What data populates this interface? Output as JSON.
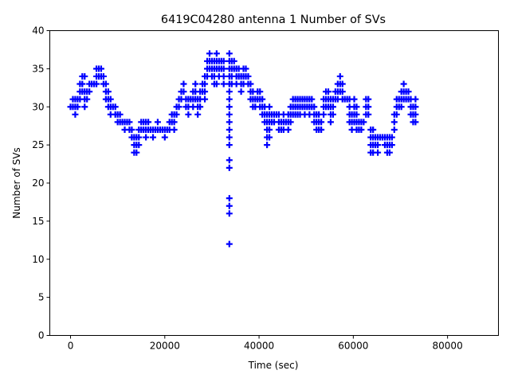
{
  "chart_data": {
    "type": "scatter",
    "title": "6419C04280 antenna 1 Number of SVs",
    "xlabel": "Time (sec)",
    "ylabel": "Number of SVs",
    "xlim": [
      -4400,
      90800
    ],
    "ylim": [
      0,
      40
    ],
    "xticks": [
      0,
      20000,
      40000,
      60000,
      80000
    ],
    "yticks": [
      0,
      5,
      10,
      15,
      20,
      25,
      30,
      35,
      40
    ],
    "marker": "+",
    "color": "#0000ff",
    "grid": false,
    "points_by_time": [
      {
        "t": 0,
        "v": [
          30
        ]
      },
      {
        "t": 500,
        "v": [
          30,
          31
        ]
      },
      {
        "t": 1000,
        "v": [
          29,
          30,
          31
        ]
      },
      {
        "t": 1500,
        "v": [
          30,
          31
        ]
      },
      {
        "t": 2000,
        "v": [
          31,
          32,
          33
        ]
      },
      {
        "t": 2500,
        "v": [
          32,
          33,
          34
        ]
      },
      {
        "t": 3000,
        "v": [
          30,
          31,
          32,
          34
        ]
      },
      {
        "t": 3500,
        "v": [
          31,
          32
        ]
      },
      {
        "t": 4000,
        "v": [
          32,
          33
        ]
      },
      {
        "t": 4500,
        "v": [
          33
        ]
      },
      {
        "t": 5000,
        "v": [
          33
        ]
      },
      {
        "t": 5500,
        "v": [
          33,
          34,
          35
        ]
      },
      {
        "t": 6000,
        "v": [
          34,
          35
        ]
      },
      {
        "t": 6500,
        "v": [
          34,
          35
        ]
      },
      {
        "t": 7000,
        "v": [
          33,
          34
        ]
      },
      {
        "t": 7500,
        "v": [
          31,
          32,
          33
        ]
      },
      {
        "t": 8000,
        "v": [
          30,
          31,
          32
        ]
      },
      {
        "t": 8500,
        "v": [
          29,
          30,
          31
        ]
      },
      {
        "t": 9000,
        "v": [
          30
        ]
      },
      {
        "t": 9500,
        "v": [
          29,
          30
        ]
      },
      {
        "t": 10000,
        "v": [
          28,
          29
        ]
      },
      {
        "t": 10500,
        "v": [
          28,
          29
        ]
      },
      {
        "t": 11000,
        "v": [
          28
        ]
      },
      {
        "t": 11500,
        "v": [
          27,
          28
        ]
      },
      {
        "t": 12000,
        "v": [
          28
        ]
      },
      {
        "t": 12500,
        "v": [
          27,
          28
        ]
      },
      {
        "t": 13000,
        "v": [
          26,
          27
        ]
      },
      {
        "t": 13500,
        "v": [
          24,
          25,
          26
        ]
      },
      {
        "t": 14000,
        "v": [
          24,
          25,
          26
        ]
      },
      {
        "t": 14500,
        "v": [
          25,
          26,
          27
        ]
      },
      {
        "t": 15000,
        "v": [
          27,
          28
        ]
      },
      {
        "t": 15500,
        "v": [
          27,
          28
        ]
      },
      {
        "t": 16000,
        "v": [
          26,
          27,
          28
        ]
      },
      {
        "t": 16500,
        "v": [
          27,
          28
        ]
      },
      {
        "t": 17000,
        "v": [
          27
        ]
      },
      {
        "t": 17500,
        "v": [
          26,
          27
        ]
      },
      {
        "t": 18000,
        "v": [
          27
        ]
      },
      {
        "t": 18500,
        "v": [
          27,
          28
        ]
      },
      {
        "t": 19000,
        "v": [
          27
        ]
      },
      {
        "t": 19500,
        "v": [
          27
        ]
      },
      {
        "t": 20000,
        "v": [
          26,
          27
        ]
      },
      {
        "t": 20500,
        "v": [
          27
        ]
      },
      {
        "t": 21000,
        "v": [
          27,
          28
        ]
      },
      {
        "t": 21500,
        "v": [
          28,
          29
        ]
      },
      {
        "t": 22000,
        "v": [
          27,
          28,
          29
        ]
      },
      {
        "t": 22500,
        "v": [
          29,
          30
        ]
      },
      {
        "t": 23000,
        "v": [
          30,
          31
        ]
      },
      {
        "t": 23500,
        "v": [
          31,
          32
        ]
      },
      {
        "t": 24000,
        "v": [
          32,
          33
        ]
      },
      {
        "t": 24500,
        "v": [
          30,
          31
        ]
      },
      {
        "t": 25000,
        "v": [
          29,
          30,
          31
        ]
      },
      {
        "t": 25500,
        "v": [
          31
        ]
      },
      {
        "t": 26000,
        "v": [
          30,
          31,
          32
        ]
      },
      {
        "t": 26500,
        "v": [
          31,
          32,
          33
        ]
      },
      {
        "t": 27000,
        "v": [
          29,
          30,
          31
        ]
      },
      {
        "t": 27500,
        "v": [
          30,
          31,
          32
        ]
      },
      {
        "t": 28000,
        "v": [
          32,
          33
        ]
      },
      {
        "t": 28500,
        "v": [
          31,
          32,
          33,
          34
        ]
      },
      {
        "t": 29000,
        "v": [
          34,
          35,
          36
        ]
      },
      {
        "t": 29500,
        "v": [
          35,
          36,
          37
        ]
      },
      {
        "t": 30000,
        "v": [
          34,
          35,
          36
        ]
      },
      {
        "t": 30500,
        "v": [
          33,
          34,
          35,
          36
        ]
      },
      {
        "t": 31000,
        "v": [
          33,
          35,
          36,
          37
        ]
      },
      {
        "t": 31500,
        "v": [
          34,
          35,
          36
        ]
      },
      {
        "t": 32000,
        "v": [
          35,
          36
        ]
      },
      {
        "t": 32500,
        "v": [
          33,
          34,
          35,
          36
        ]
      },
      {
        "t": 33700,
        "v": [
          12,
          16,
          17,
          18,
          22,
          23,
          25,
          26,
          27,
          28,
          29,
          30,
          31,
          32,
          33,
          34,
          35,
          36,
          37
        ]
      },
      {
        "t": 34200,
        "v": [
          33,
          34,
          35,
          36
        ]
      },
      {
        "t": 34700,
        "v": [
          35,
          36
        ]
      },
      {
        "t": 35200,
        "v": [
          33,
          34,
          35
        ]
      },
      {
        "t": 35700,
        "v": [
          34,
          35
        ]
      },
      {
        "t": 36200,
        "v": [
          32,
          33,
          34
        ]
      },
      {
        "t": 36700,
        "v": [
          33,
          34,
          35
        ]
      },
      {
        "t": 37200,
        "v": [
          34,
          35
        ]
      },
      {
        "t": 37700,
        "v": [
          33,
          34
        ]
      },
      {
        "t": 38200,
        "v": [
          31,
          32,
          33
        ]
      },
      {
        "t": 38700,
        "v": [
          30,
          31,
          32
        ]
      },
      {
        "t": 39200,
        "v": [
          30,
          31
        ]
      },
      {
        "t": 39700,
        "v": [
          31,
          32
        ]
      },
      {
        "t": 40200,
        "v": [
          30,
          31,
          32
        ]
      },
      {
        "t": 40700,
        "v": [
          29,
          30,
          31
        ]
      },
      {
        "t": 41200,
        "v": [
          28,
          29,
          30
        ]
      },
      {
        "t": 41700,
        "v": [
          25,
          26,
          27,
          28,
          29
        ]
      },
      {
        "t": 42200,
        "v": [
          26,
          27,
          28,
          29,
          30
        ]
      },
      {
        "t": 42700,
        "v": [
          28,
          29
        ]
      },
      {
        "t": 43200,
        "v": [
          28,
          29
        ]
      },
      {
        "t": 43700,
        "v": [
          29
        ]
      },
      {
        "t": 44200,
        "v": [
          27,
          28,
          29
        ]
      },
      {
        "t": 44700,
        "v": [
          27,
          28
        ]
      },
      {
        "t": 45200,
        "v": [
          27,
          28,
          29
        ]
      },
      {
        "t": 45700,
        "v": [
          28
        ]
      },
      {
        "t": 46200,
        "v": [
          27,
          28,
          29
        ]
      },
      {
        "t": 46700,
        "v": [
          28,
          29,
          30
        ]
      },
      {
        "t": 47200,
        "v": [
          29,
          30,
          31
        ]
      },
      {
        "t": 47700,
        "v": [
          29,
          30,
          31
        ]
      },
      {
        "t": 48200,
        "v": [
          29,
          30,
          31
        ]
      },
      {
        "t": 48700,
        "v": [
          29,
          30,
          31
        ]
      },
      {
        "t": 49200,
        "v": [
          30,
          31
        ]
      },
      {
        "t": 49700,
        "v": [
          29,
          30,
          31
        ]
      },
      {
        "t": 50200,
        "v": [
          30,
          31
        ]
      },
      {
        "t": 50700,
        "v": [
          29,
          30,
          31
        ]
      },
      {
        "t": 51200,
        "v": [
          30,
          31
        ]
      },
      {
        "t": 51700,
        "v": [
          28,
          29,
          30
        ]
      },
      {
        "t": 52200,
        "v": [
          27,
          28,
          29
        ]
      },
      {
        "t": 52700,
        "v": [
          27,
          28,
          29
        ]
      },
      {
        "t": 53200,
        "v": [
          27,
          28
        ]
      },
      {
        "t": 53700,
        "v": [
          29,
          30,
          31
        ]
      },
      {
        "t": 54200,
        "v": [
          30,
          31,
          32
        ]
      },
      {
        "t": 54700,
        "v": [
          30,
          31,
          32
        ]
      },
      {
        "t": 55200,
        "v": [
          28,
          29,
          30,
          31
        ]
      },
      {
        "t": 55700,
        "v": [
          29,
          30,
          31
        ]
      },
      {
        "t": 56200,
        "v": [
          31,
          32
        ]
      },
      {
        "t": 56700,
        "v": [
          31,
          32,
          33
        ]
      },
      {
        "t": 57200,
        "v": [
          32,
          33,
          34
        ]
      },
      {
        "t": 57700,
        "v": [
          31,
          32,
          33
        ]
      },
      {
        "t": 58200,
        "v": [
          31
        ]
      },
      {
        "t": 58700,
        "v": [
          31
        ]
      },
      {
        "t": 59200,
        "v": [
          28,
          29,
          30,
          31
        ]
      },
      {
        "t": 59700,
        "v": [
          27,
          28,
          29
        ]
      },
      {
        "t": 60200,
        "v": [
          28,
          29,
          30,
          31
        ]
      },
      {
        "t": 60700,
        "v": [
          27,
          28,
          29,
          30
        ]
      },
      {
        "t": 61200,
        "v": [
          27,
          28
        ]
      },
      {
        "t": 61700,
        "v": [
          27,
          28
        ]
      },
      {
        "t": 62200,
        "v": [
          28
        ]
      },
      {
        "t": 62700,
        "v": [
          29,
          30,
          31
        ]
      },
      {
        "t": 63200,
        "v": [
          29,
          30,
          31
        ]
      },
      {
        "t": 63700,
        "v": [
          24,
          25,
          26,
          27
        ]
      },
      {
        "t": 64200,
        "v": [
          24,
          25,
          26,
          27
        ]
      },
      {
        "t": 64700,
        "v": [
          25,
          26
        ]
      },
      {
        "t": 65200,
        "v": [
          24,
          25,
          26
        ]
      },
      {
        "t": 65700,
        "v": [
          26
        ]
      },
      {
        "t": 66200,
        "v": [
          26
        ]
      },
      {
        "t": 66700,
        "v": [
          25,
          26
        ]
      },
      {
        "t": 67200,
        "v": [
          24,
          25,
          26
        ]
      },
      {
        "t": 67700,
        "v": [
          24,
          25,
          26
        ]
      },
      {
        "t": 68200,
        "v": [
          25,
          26
        ]
      },
      {
        "t": 68700,
        "v": [
          27,
          28,
          29
        ]
      },
      {
        "t": 69200,
        "v": [
          29,
          30,
          31
        ]
      },
      {
        "t": 69700,
        "v": [
          30,
          31
        ]
      },
      {
        "t": 70200,
        "v": [
          30,
          31,
          32
        ]
      },
      {
        "t": 70700,
        "v": [
          31,
          32,
          33
        ]
      },
      {
        "t": 71200,
        "v": [
          31,
          32
        ]
      },
      {
        "t": 71700,
        "v": [
          31,
          32
        ]
      },
      {
        "t": 72200,
        "v": [
          29,
          30,
          31
        ]
      },
      {
        "t": 72700,
        "v": [
          28,
          29,
          30
        ]
      },
      {
        "t": 73200,
        "v": [
          28,
          29,
          30,
          31
        ]
      }
    ]
  }
}
